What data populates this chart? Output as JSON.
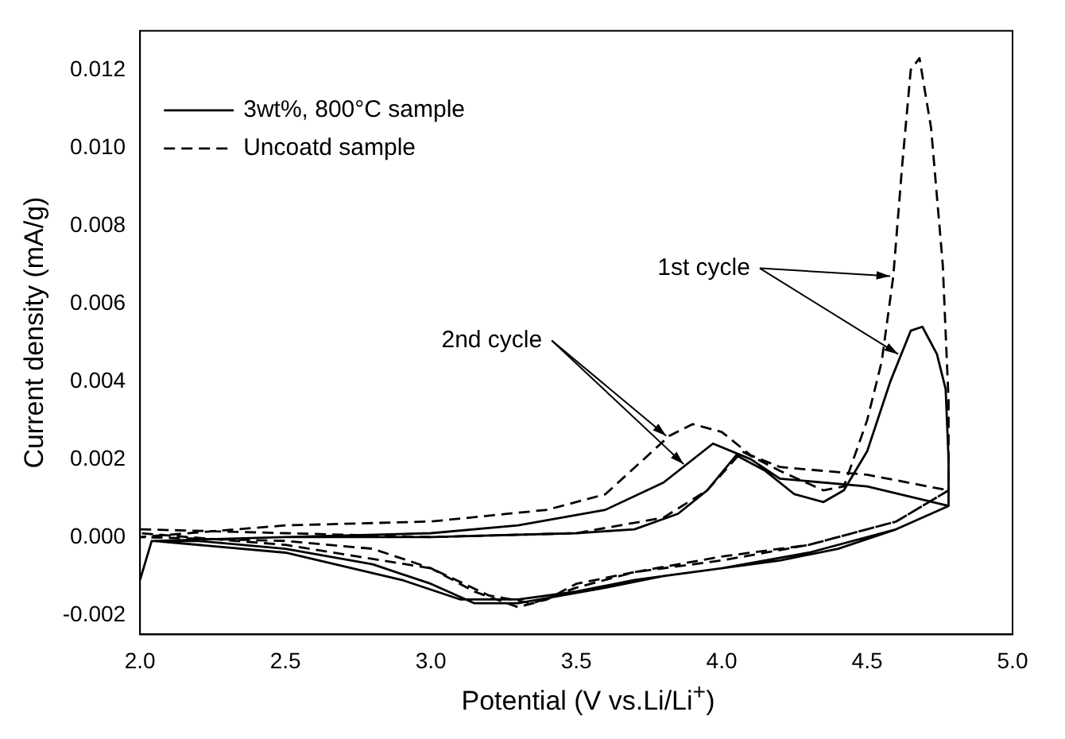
{
  "chart_data": {
    "type": "line",
    "xlabel": "Potential (V vs.Li/Li$^{+}$)",
    "ylabel": "Current density (mA/g)",
    "xlim": [
      2.0,
      5.0
    ],
    "xticks": [
      {
        "value": 2,
        "label": "2.0"
      },
      {
        "value": 2.5,
        "label": "2.5"
      },
      {
        "value": 3,
        "label": "3.0"
      },
      {
        "value": 3.5,
        "label": "3.5"
      },
      {
        "value": 4,
        "label": "4.0"
      },
      {
        "value": 4.5,
        "label": "4.5"
      },
      {
        "value": 5,
        "label": "5.0"
      }
    ],
    "ylim": [
      -0.0025,
      0.013
    ],
    "yticks": [
      {
        "value": -0.002,
        "label": "-0.002"
      },
      {
        "value": 0,
        "label": "0.000"
      },
      {
        "value": 0.002,
        "label": "0.002"
      },
      {
        "value": 0.004,
        "label": "0.004"
      },
      {
        "value": 0.006,
        "label": "0.006"
      },
      {
        "value": 0.008,
        "label": "0.008"
      },
      {
        "value": 0.01,
        "label": "0.010"
      },
      {
        "value": 0.012,
        "label": "0.012"
      }
    ],
    "grid": false,
    "legend": "top left",
    "marker": "none",
    "series": [
      {
        "name": "3wt%, 800°C sample",
        "color": "#000000",
        "line_style": "solid",
        "x": [
          2.0,
          2.04,
          2.5,
          3.0,
          3.5,
          3.7,
          3.85,
          3.95,
          4.05,
          4.15,
          4.25,
          4.35,
          4.42,
          4.5,
          4.58,
          4.65,
          4.69,
          4.74,
          4.77,
          4.78,
          4.78,
          4.6,
          4.4,
          4.2,
          4.0,
          3.8,
          3.6,
          3.45,
          3.3,
          3.15,
          3.0,
          2.8,
          2.5,
          2.2,
          2.04,
          2.5,
          3.0,
          3.3,
          3.6,
          3.8,
          3.97,
          4.1,
          4.2,
          4.5,
          4.78,
          4.6,
          4.3,
          4.0,
          3.7,
          3.5,
          3.3,
          3.1,
          2.9,
          2.5,
          2.05
        ],
        "values": [
          -0.0011,
          -0.0001,
          0.0,
          0.0,
          0.0001,
          0.0002,
          0.0006,
          0.0012,
          0.0021,
          0.0017,
          0.0011,
          0.0009,
          0.0012,
          0.0022,
          0.004,
          0.0053,
          0.0054,
          0.0047,
          0.0038,
          0.002,
          0.0008,
          0.0002,
          -0.0003,
          -0.0006,
          -0.0008,
          -0.001,
          -0.0013,
          -0.0015,
          -0.0017,
          -0.0017,
          -0.0012,
          -0.0007,
          -0.0003,
          -0.0001,
          -0.0001,
          0.0,
          0.0001,
          0.0003,
          0.0007,
          0.0014,
          0.0024,
          0.002,
          0.0015,
          0.0013,
          0.0008,
          0.0002,
          -0.0004,
          -0.0008,
          -0.0011,
          -0.0014,
          -0.0016,
          -0.0016,
          -0.0011,
          -0.0004,
          -0.0001
        ]
      },
      {
        "name": "Uncoatd sample",
        "color": "#000000",
        "line_style": "dashed",
        "x": [
          2.0,
          2.5,
          3.0,
          3.5,
          3.8,
          3.95,
          4.07,
          4.2,
          4.35,
          4.42,
          4.5,
          4.55,
          4.59,
          4.62,
          4.65,
          4.68,
          4.72,
          4.76,
          4.78,
          4.78,
          4.6,
          4.3,
          4.0,
          3.7,
          3.5,
          3.4,
          3.3,
          3.15,
          3.0,
          2.8,
          2.5,
          2.0,
          2.5,
          3.0,
          3.4,
          3.6,
          3.82,
          3.9,
          4.0,
          4.1,
          4.2,
          4.5,
          4.78,
          4.6,
          4.3,
          4.0,
          3.7,
          3.5,
          3.35,
          3.2,
          3.0,
          2.5,
          2.0
        ],
        "values": [
          0.0002,
          0.0001,
          0.0,
          0.0001,
          0.0005,
          0.0012,
          0.0022,
          0.0017,
          0.0012,
          0.0013,
          0.003,
          0.0045,
          0.0067,
          0.0095,
          0.012,
          0.0123,
          0.0105,
          0.007,
          0.0035,
          0.0012,
          0.0004,
          -0.0002,
          -0.0006,
          -0.0009,
          -0.0012,
          -0.0016,
          -0.0018,
          -0.0014,
          -0.0008,
          -0.0003,
          -0.0001,
          0.0,
          0.0003,
          0.0004,
          0.0007,
          0.0011,
          0.0026,
          0.0029,
          0.0027,
          0.0021,
          0.0018,
          0.0016,
          0.0012,
          0.0004,
          -0.0002,
          -0.0005,
          -0.0009,
          -0.0013,
          -0.0017,
          -0.0015,
          -0.0008,
          -0.0002,
          0.0001
        ]
      }
    ],
    "annotations": [
      {
        "text": "1st cycle",
        "x": 4.59,
        "y": 0.0067
      },
      {
        "text": "2nd cycle",
        "x": 3.82,
        "y": 0.0026
      }
    ]
  }
}
